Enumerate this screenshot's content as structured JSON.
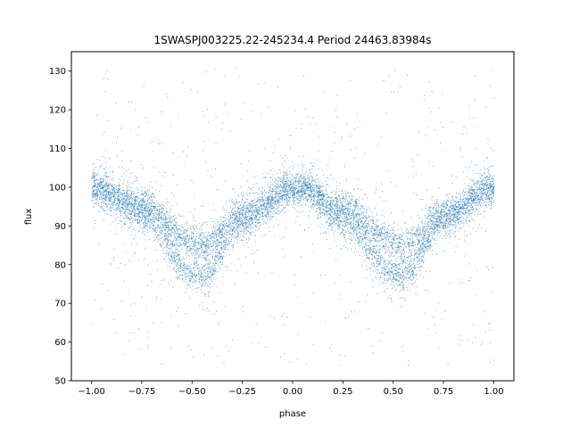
{
  "chart_data": {
    "type": "scatter",
    "title": "1SWASPJ003225.22-245234.4 Period 24463.83984s",
    "xlabel": "phase",
    "ylabel": "flux",
    "xlim": [
      -1.1,
      1.1
    ],
    "ylim": [
      50,
      135
    ],
    "xticks": [
      -1.0,
      -0.75,
      -0.5,
      -0.25,
      0.0,
      0.25,
      0.5,
      0.75,
      1.0
    ],
    "xtick_labels": [
      "−1.00",
      "−0.75",
      "−0.50",
      "−0.25",
      "0.00",
      "0.25",
      "0.50",
      "0.75",
      "1.00"
    ],
    "yticks": [
      50,
      60,
      70,
      80,
      90,
      100,
      110,
      120,
      130
    ],
    "ytick_labels": [
      "50",
      "60",
      "70",
      "80",
      "90",
      "100",
      "110",
      "120",
      "130"
    ],
    "grid": false,
    "marker_color": "#1f77b4",
    "bands": [
      {
        "phase": [
          -1.0,
          -0.75,
          -0.5,
          -0.45,
          -0.25,
          0.0,
          0.05,
          0.25,
          0.5,
          0.55,
          0.75,
          1.0
        ],
        "flux": [
          100,
          96,
          86,
          85,
          94,
          100,
          100,
          95,
          86,
          85,
          93,
          100
        ]
      },
      {
        "phase": [
          -1.0,
          -0.75,
          -0.5,
          -0.45,
          -0.25,
          0.0,
          0.05,
          0.25,
          0.5,
          0.55,
          0.75,
          1.0
        ],
        "flux": [
          100,
          93,
          78,
          77,
          91,
          99,
          100,
          91,
          78,
          77,
          92,
          100
        ]
      }
    ],
    "band_scatter": 2.2,
    "outlier_range": [
      54,
      131
    ]
  }
}
